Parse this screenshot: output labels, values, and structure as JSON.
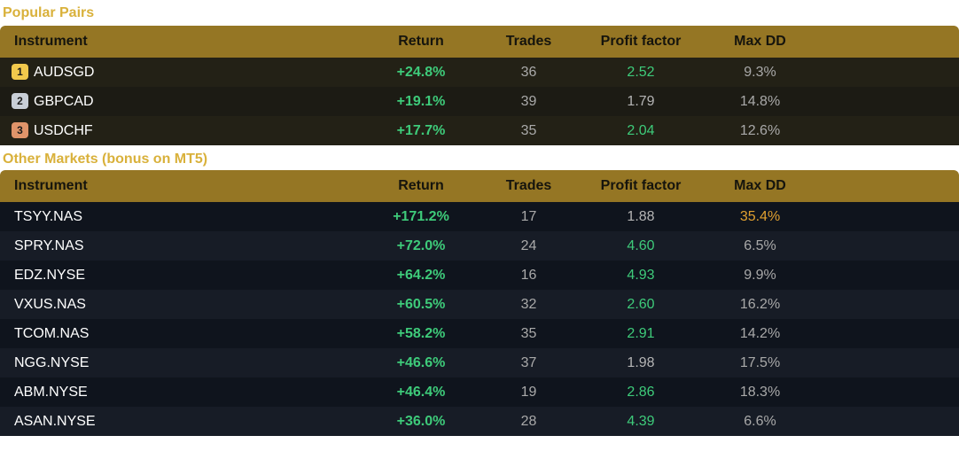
{
  "popular": {
    "title": "Popular Pairs",
    "headers": {
      "instrument": "Instrument",
      "return": "Return",
      "trades": "Trades",
      "profit_factor": "Profit factor",
      "max_dd": "Max DD"
    },
    "rows": [
      {
        "rank": "1",
        "rank_color": "#f2c94c",
        "instrument": "AUDSGD",
        "return": "+24.8%",
        "trades": "36",
        "profit_factor": "2.52",
        "pf_color": "#3ecb7a",
        "max_dd": "9.3%",
        "dd_color": "#a9a9a9"
      },
      {
        "rank": "2",
        "rank_color": "#c8ced6",
        "instrument": "GBPCAD",
        "return": "+19.1%",
        "trades": "39",
        "profit_factor": "1.79",
        "pf_color": "#b4b4b4",
        "max_dd": "14.8%",
        "dd_color": "#a9a9a9"
      },
      {
        "rank": "3",
        "rank_color": "#e0946a",
        "instrument": "USDCHF",
        "return": "+17.7%",
        "trades": "35",
        "profit_factor": "2.04",
        "pf_color": "#3ecb7a",
        "max_dd": "12.6%",
        "dd_color": "#a9a9a9"
      }
    ]
  },
  "other": {
    "title": "Other Markets (bonus on MT5)",
    "headers": {
      "instrument": "Instrument",
      "return": "Return",
      "trades": "Trades",
      "profit_factor": "Profit factor",
      "max_dd": "Max DD"
    },
    "rows": [
      {
        "instrument": "TSYY.NAS",
        "return": "+171.2%",
        "trades": "17",
        "profit_factor": "1.88",
        "pf_color": "#b4b4b4",
        "max_dd": "35.4%",
        "dd_color": "#e0a030"
      },
      {
        "instrument": "SPRY.NAS",
        "return": "+72.0%",
        "trades": "24",
        "profit_factor": "4.60",
        "pf_color": "#3ecb7a",
        "max_dd": "6.5%",
        "dd_color": "#a9a9a9"
      },
      {
        "instrument": "EDZ.NYSE",
        "return": "+64.2%",
        "trades": "16",
        "profit_factor": "4.93",
        "pf_color": "#3ecb7a",
        "max_dd": "9.9%",
        "dd_color": "#a9a9a9"
      },
      {
        "instrument": "VXUS.NAS",
        "return": "+60.5%",
        "trades": "32",
        "profit_factor": "2.60",
        "pf_color": "#3ecb7a",
        "max_dd": "16.2%",
        "dd_color": "#a9a9a9"
      },
      {
        "instrument": "TCOM.NAS",
        "return": "+58.2%",
        "trades": "35",
        "profit_factor": "2.91",
        "pf_color": "#3ecb7a",
        "max_dd": "14.2%",
        "dd_color": "#a9a9a9"
      },
      {
        "instrument": "NGG.NYSE",
        "return": "+46.6%",
        "trades": "37",
        "profit_factor": "1.98",
        "pf_color": "#b4b4b4",
        "max_dd": "17.5%",
        "dd_color": "#a9a9a9"
      },
      {
        "instrument": "ABM.NYSE",
        "return": "+46.4%",
        "trades": "19",
        "profit_factor": "2.86",
        "pf_color": "#3ecb7a",
        "max_dd": "18.3%",
        "dd_color": "#a9a9a9"
      },
      {
        "instrument": "ASAN.NYSE",
        "return": "+36.0%",
        "trades": "28",
        "profit_factor": "4.39",
        "pf_color": "#3ecb7a",
        "max_dd": "6.6%",
        "dd_color": "#a9a9a9"
      }
    ]
  }
}
